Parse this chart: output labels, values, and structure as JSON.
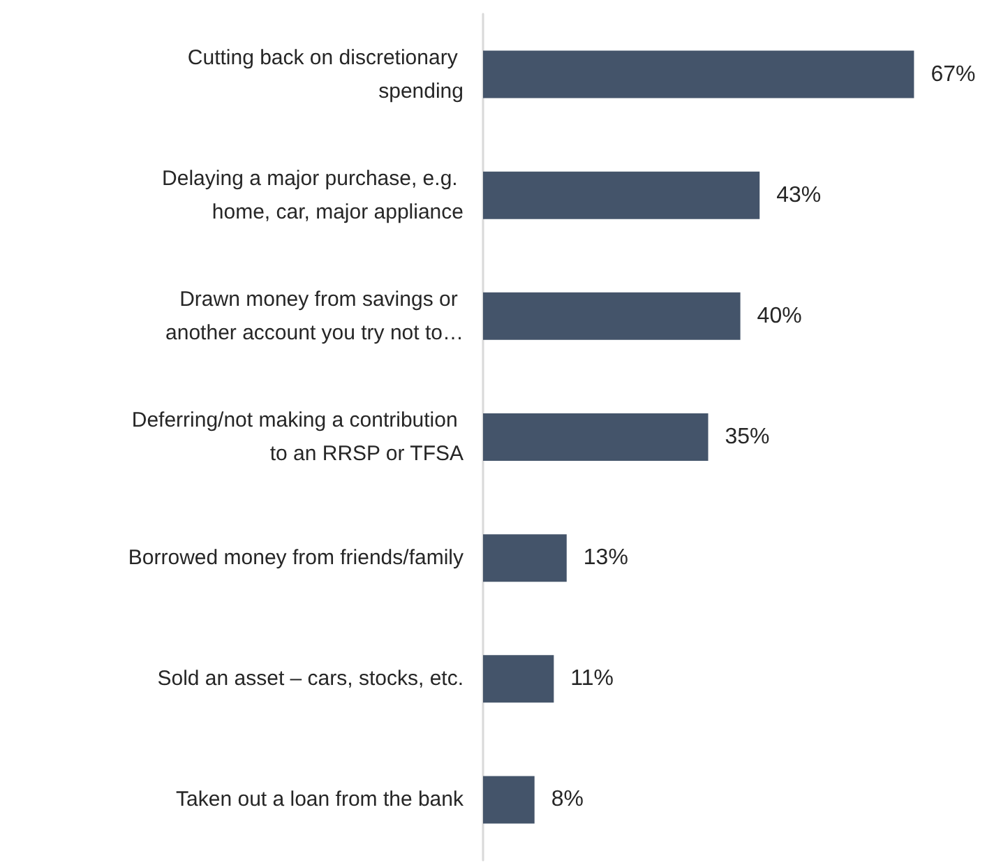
{
  "chart_data": {
    "type": "bar",
    "orientation": "horizontal",
    "categories": [
      "Cutting back on discretionary spending",
      "Delaying a major purchase, e.g. home, car, major appliance",
      "Drawn money from savings or another account you try not to…",
      "Deferring/not making a contribution to an RRSP or TFSA",
      "Borrowed money from friends/family",
      "Sold an asset – cars, stocks, etc.",
      "Taken out a loan from the bank"
    ],
    "values": [
      67,
      43,
      40,
      35,
      13,
      11,
      8
    ],
    "value_labels": [
      "67%",
      "43%",
      "40%",
      "35%",
      "13%",
      "11%",
      "8%"
    ],
    "color": "#44546a"
  }
}
